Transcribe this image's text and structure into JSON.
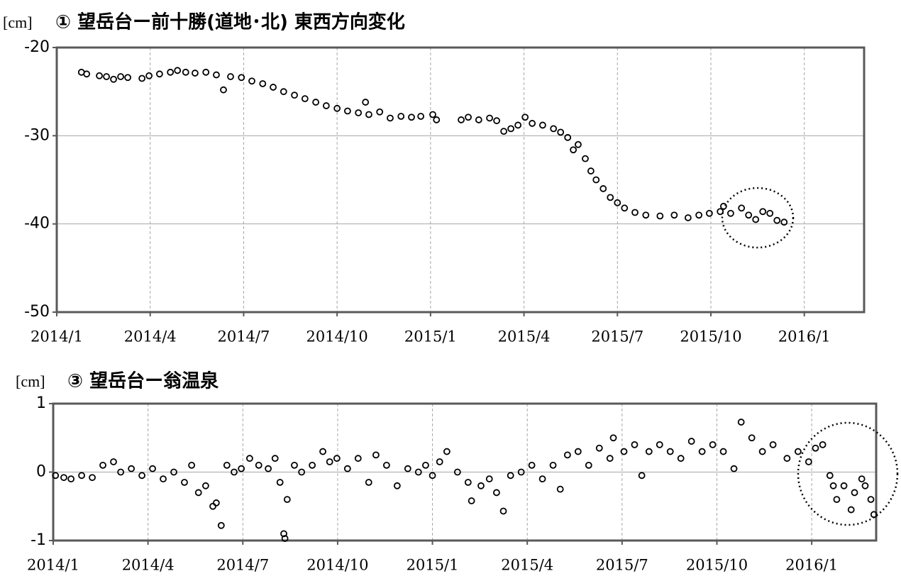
{
  "chart_data": [
    {
      "type": "scatter",
      "y_label": "[cm]",
      "title": "① 望岳台ー前十勝(道地･北) 東西方向変化",
      "xlim": [
        2014.0,
        2016.16
      ],
      "ylim": [
        -50,
        -20
      ],
      "yticks": [
        -50,
        -40,
        -30,
        -20
      ],
      "xticks": [
        {
          "value": 2014.0,
          "label": "2014/1"
        },
        {
          "value": 2014.25,
          "label": "2014/4"
        },
        {
          "value": 2014.5,
          "label": "2014/7"
        },
        {
          "value": 2014.75,
          "label": "2014/10"
        },
        {
          "value": 2015.0,
          "label": "2015/1"
        },
        {
          "value": 2015.25,
          "label": "2015/4"
        },
        {
          "value": 2015.5,
          "label": "2015/7"
        },
        {
          "value": 2015.75,
          "label": "2015/10"
        },
        {
          "value": 2016.0,
          "label": "2016/1"
        }
      ],
      "grid": true,
      "color": "#000000",
      "x": [
        2014.066,
        2014.08,
        2014.114,
        2014.133,
        2014.152,
        2014.171,
        2014.19,
        2014.228,
        2014.247,
        2014.275,
        2014.304,
        2014.323,
        2014.345,
        2014.37,
        2014.399,
        2014.427,
        2014.446,
        2014.465,
        2014.494,
        2014.522,
        2014.551,
        2014.579,
        2014.607,
        2014.636,
        2014.664,
        2014.693,
        2014.721,
        2014.75,
        2014.778,
        2014.807,
        2014.826,
        2014.835,
        2014.864,
        2014.892,
        2014.921,
        2014.949,
        2014.974,
        2015.006,
        2015.016,
        2015.082,
        2015.101,
        2015.129,
        2015.158,
        2015.177,
        2015.196,
        2015.215,
        2015.234,
        2015.253,
        2015.272,
        2015.3,
        2015.329,
        2015.348,
        2015.367,
        2015.382,
        2015.395,
        2015.414,
        2015.429,
        2015.443,
        2015.462,
        2015.481,
        2015.5,
        2015.519,
        2015.547,
        2015.576,
        2015.614,
        2015.652,
        2015.689,
        2015.718,
        2015.746,
        2015.775,
        2015.784,
        2015.803,
        2015.832,
        2015.851,
        2015.87,
        2015.889,
        2015.908,
        2015.927,
        2015.946
      ],
      "values": [
        -22.8,
        -23.0,
        -23.2,
        -23.3,
        -23.6,
        -23.3,
        -23.4,
        -23.5,
        -23.2,
        -23.0,
        -22.8,
        -22.6,
        -22.8,
        -22.9,
        -22.8,
        -23.1,
        -24.8,
        -23.3,
        -23.4,
        -23.8,
        -24.1,
        -24.5,
        -25.0,
        -25.4,
        -25.8,
        -26.2,
        -26.6,
        -26.9,
        -27.2,
        -27.4,
        -26.2,
        -27.6,
        -27.3,
        -28.0,
        -27.8,
        -27.9,
        -27.8,
        -27.6,
        -28.2,
        -28.2,
        -27.9,
        -28.2,
        -28.0,
        -28.3,
        -29.5,
        -29.2,
        -28.8,
        -27.9,
        -28.6,
        -28.8,
        -29.2,
        -29.6,
        -30.2,
        -31.6,
        -31.0,
        -32.6,
        -34.0,
        -35.0,
        -36.0,
        -37.0,
        -37.6,
        -38.2,
        -38.7,
        -39.0,
        -39.1,
        -39.0,
        -39.3,
        -39.0,
        -38.8,
        -38.6,
        -38.0,
        -38.8,
        -38.2,
        -39.0,
        -39.5,
        -38.6,
        -38.8,
        -39.6,
        -39.8
      ]
    },
    {
      "type": "scatter",
      "y_label": "[cm]",
      "title": "③ 望岳台ー翁温泉",
      "xlim": [
        2014.0,
        2016.17
      ],
      "ylim": [
        -1,
        1
      ],
      "yticks": [
        -1,
        0,
        1
      ],
      "xticks": [
        {
          "value": 2014.0,
          "label": "2014/1"
        },
        {
          "value": 2014.25,
          "label": "2014/4"
        },
        {
          "value": 2014.5,
          "label": "2014/7"
        },
        {
          "value": 2014.75,
          "label": "2014/10"
        },
        {
          "value": 2015.0,
          "label": "2015/1"
        },
        {
          "value": 2015.25,
          "label": "2015/4"
        },
        {
          "value": 2015.5,
          "label": "2015/7"
        },
        {
          "value": 2015.75,
          "label": "2015/10"
        },
        {
          "value": 2016.0,
          "label": "2016/1"
        }
      ],
      "grid": true,
      "color": "#000000",
      "x": [
        2014.006,
        2014.028,
        2014.047,
        2014.075,
        2014.103,
        2014.131,
        2014.159,
        2014.178,
        2014.206,
        2014.234,
        2014.262,
        2014.29,
        2014.318,
        2014.346,
        2014.365,
        2014.383,
        2014.402,
        2014.421,
        2014.43,
        2014.443,
        2014.458,
        2014.477,
        2014.496,
        2014.518,
        2014.542,
        2014.567,
        2014.585,
        2014.598,
        2014.608,
        2014.611,
        2014.617,
        2014.636,
        2014.655,
        2014.683,
        2014.711,
        2014.729,
        2014.748,
        2014.776,
        2014.804,
        2014.832,
        2014.851,
        2014.879,
        2014.907,
        2014.935,
        2014.963,
        2014.982,
        2015.0,
        2015.019,
        2015.038,
        2015.066,
        2015.094,
        2015.103,
        2015.128,
        2015.15,
        2015.169,
        2015.187,
        2015.206,
        2015.234,
        2015.262,
        2015.29,
        2015.318,
        2015.337,
        2015.356,
        2015.384,
        2015.412,
        2015.44,
        2015.468,
        2015.477,
        2015.505,
        2015.533,
        2015.552,
        2015.571,
        2015.599,
        2015.627,
        2015.655,
        2015.683,
        2015.711,
        2015.739,
        2015.767,
        2015.795,
        2015.814,
        2015.842,
        2015.87,
        2015.898,
        2015.935,
        2015.964,
        2015.992,
        2016.01,
        2016.029,
        2016.048,
        2016.057,
        2016.066,
        2016.085,
        2016.104,
        2016.113,
        2016.132,
        2016.141,
        2016.156,
        2016.164
      ],
      "values": [
        -0.05,
        -0.08,
        -0.1,
        -0.05,
        -0.08,
        0.1,
        0.15,
        0.0,
        0.05,
        -0.05,
        0.05,
        -0.1,
        0.0,
        -0.15,
        0.1,
        -0.3,
        -0.2,
        -0.5,
        -0.45,
        -0.78,
        0.1,
        0.0,
        0.05,
        0.2,
        0.1,
        0.05,
        0.2,
        -0.15,
        -0.9,
        -0.97,
        -0.4,
        0.1,
        0.0,
        0.1,
        0.3,
        0.15,
        0.2,
        0.05,
        0.2,
        -0.15,
        0.25,
        0.1,
        -0.2,
        0.05,
        0.0,
        0.1,
        -0.05,
        0.15,
        0.3,
        0.0,
        -0.15,
        -0.42,
        -0.2,
        -0.1,
        -0.3,
        -0.57,
        -0.05,
        0.0,
        0.1,
        -0.1,
        0.1,
        -0.25,
        0.25,
        0.3,
        0.1,
        0.35,
        0.2,
        0.5,
        0.3,
        0.4,
        -0.05,
        0.3,
        0.4,
        0.3,
        0.2,
        0.45,
        0.3,
        0.4,
        0.3,
        0.05,
        0.73,
        0.5,
        0.3,
        0.4,
        0.2,
        0.3,
        0.15,
        0.35,
        0.4,
        -0.05,
        -0.2,
        -0.4,
        -0.2,
        -0.55,
        -0.3,
        -0.1,
        -0.2,
        -0.4,
        -0.62
      ]
    }
  ]
}
